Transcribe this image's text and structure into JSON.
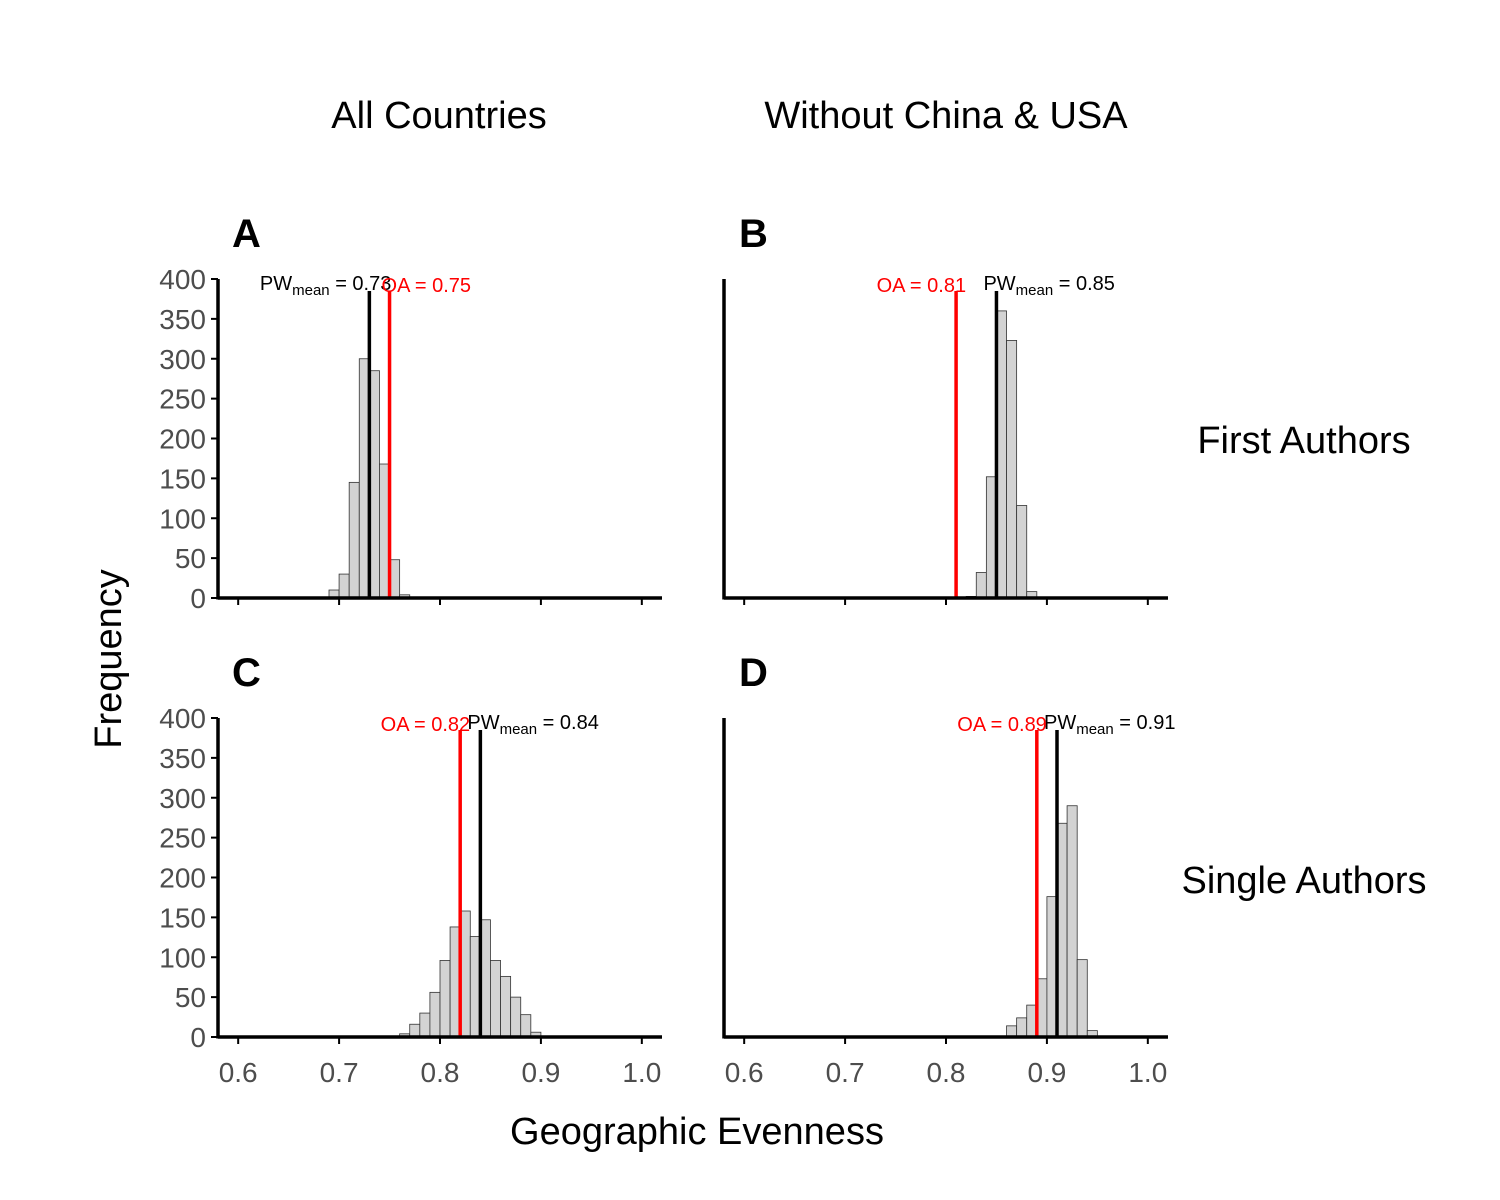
{
  "figure": {
    "column_titles": [
      "All Countries",
      "Without China & USA"
    ],
    "row_titles": [
      "First Authors",
      "Single Authors"
    ],
    "xlabel": "Geographic Evenness",
    "ylabel": "Frequency",
    "colors": {
      "bar_fill": "#d3d3d3",
      "bar_stroke": "#333333",
      "pw_line": "#000000",
      "oa_line": "#ff0000",
      "axis": "#000000",
      "tick_label": "#4d4d4d"
    }
  },
  "chart_data": [
    {
      "type": "bar",
      "panel": "A",
      "column": "All Countries",
      "row": "First Authors",
      "xlim": [
        0.58,
        1.02
      ],
      "ylim": [
        0,
        400
      ],
      "xticks": [
        0.6,
        0.7,
        0.8,
        0.9,
        1.0
      ],
      "xtick_labels": [
        "0.6",
        "0.7",
        "0.8",
        "0.9",
        "1.0"
      ],
      "yticks": [
        0,
        50,
        100,
        150,
        200,
        250,
        300,
        350,
        400
      ],
      "ytick_labels": [
        "0",
        "50",
        "100",
        "150",
        "200",
        "250",
        "300",
        "350",
        "400"
      ],
      "bin_width": 0.01,
      "bins": [
        {
          "x": 0.695,
          "count": 10
        },
        {
          "x": 0.705,
          "count": 30
        },
        {
          "x": 0.715,
          "count": 145
        },
        {
          "x": 0.725,
          "count": 300
        },
        {
          "x": 0.735,
          "count": 285
        },
        {
          "x": 0.745,
          "count": 168
        },
        {
          "x": 0.755,
          "count": 48
        },
        {
          "x": 0.765,
          "count": 4
        }
      ],
      "pw_mean": {
        "value": 0.73,
        "label_main": "PW",
        "label_sub": "mean",
        "label_tail": " = 0.73"
      },
      "oa": {
        "value": 0.75,
        "label": "OA = 0.75"
      }
    },
    {
      "type": "bar",
      "panel": "B",
      "column": "Without China & USA",
      "row": "First Authors",
      "xlim": [
        0.58,
        1.02
      ],
      "ylim": [
        0,
        400
      ],
      "xticks": [
        0.6,
        0.7,
        0.8,
        0.9,
        1.0
      ],
      "xtick_labels": [
        "0.6",
        "0.7",
        "0.8",
        "0.9",
        "1.0"
      ],
      "yticks": [],
      "ytick_labels": [],
      "bin_width": 0.01,
      "bins": [
        {
          "x": 0.825,
          "count": 2
        },
        {
          "x": 0.835,
          "count": 32
        },
        {
          "x": 0.845,
          "count": 152
        },
        {
          "x": 0.855,
          "count": 360
        },
        {
          "x": 0.865,
          "count": 323
        },
        {
          "x": 0.875,
          "count": 116
        },
        {
          "x": 0.885,
          "count": 8
        }
      ],
      "pw_mean": {
        "value": 0.85,
        "label_main": "PW",
        "label_sub": "mean",
        "label_tail": " = 0.85"
      },
      "oa": {
        "value": 0.81,
        "label": "OA = 0.81"
      }
    },
    {
      "type": "bar",
      "panel": "C",
      "column": "All Countries",
      "row": "Single Authors",
      "xlim": [
        0.58,
        1.02
      ],
      "ylim": [
        0,
        400
      ],
      "xticks": [
        0.6,
        0.7,
        0.8,
        0.9,
        1.0
      ],
      "xtick_labels": [
        "0.6",
        "0.7",
        "0.8",
        "0.9",
        "1.0"
      ],
      "yticks": [
        0,
        50,
        100,
        150,
        200,
        250,
        300,
        350,
        400
      ],
      "ytick_labels": [
        "0",
        "50",
        "100",
        "150",
        "200",
        "250",
        "300",
        "350",
        "400"
      ],
      "bin_width": 0.01,
      "bins": [
        {
          "x": 0.765,
          "count": 4
        },
        {
          "x": 0.775,
          "count": 16
        },
        {
          "x": 0.785,
          "count": 30
        },
        {
          "x": 0.795,
          "count": 56
        },
        {
          "x": 0.805,
          "count": 96
        },
        {
          "x": 0.815,
          "count": 138
        },
        {
          "x": 0.825,
          "count": 158
        },
        {
          "x": 0.835,
          "count": 126
        },
        {
          "x": 0.845,
          "count": 147
        },
        {
          "x": 0.855,
          "count": 96
        },
        {
          "x": 0.865,
          "count": 76
        },
        {
          "x": 0.875,
          "count": 50
        },
        {
          "x": 0.885,
          "count": 28
        },
        {
          "x": 0.895,
          "count": 6
        }
      ],
      "pw_mean": {
        "value": 0.84,
        "label_main": "PW",
        "label_sub": "mean",
        "label_tail": " = 0.84"
      },
      "oa": {
        "value": 0.82,
        "label": "OA = 0.82"
      }
    },
    {
      "type": "bar",
      "panel": "D",
      "column": "Without China & USA",
      "row": "Single Authors",
      "xlim": [
        0.58,
        1.02
      ],
      "ylim": [
        0,
        400
      ],
      "xticks": [
        0.6,
        0.7,
        0.8,
        0.9,
        1.0
      ],
      "xtick_labels": [
        "0.6",
        "0.7",
        "0.8",
        "0.9",
        "1.0"
      ],
      "yticks": [],
      "ytick_labels": [],
      "bin_width": 0.01,
      "bins": [
        {
          "x": 0.865,
          "count": 14
        },
        {
          "x": 0.875,
          "count": 24
        },
        {
          "x": 0.885,
          "count": 40
        },
        {
          "x": 0.895,
          "count": 73
        },
        {
          "x": 0.905,
          "count": 176
        },
        {
          "x": 0.915,
          "count": 268
        },
        {
          "x": 0.925,
          "count": 290
        },
        {
          "x": 0.935,
          "count": 97
        },
        {
          "x": 0.945,
          "count": 8
        }
      ],
      "pw_mean": {
        "value": 0.91,
        "label_main": "PW",
        "label_sub": "mean",
        "label_tail": " = 0.91"
      },
      "oa": {
        "value": 0.89,
        "label": "OA = 0.89"
      }
    }
  ]
}
